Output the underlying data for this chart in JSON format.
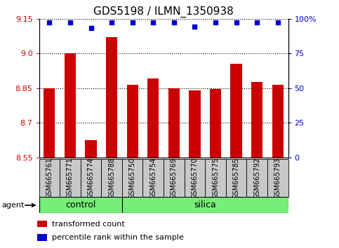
{
  "title": "GDS5198 / ILMN_1350938",
  "samples": [
    "GSM665761",
    "GSM665771",
    "GSM665774",
    "GSM665788",
    "GSM665750",
    "GSM665754",
    "GSM665769",
    "GSM665770",
    "GSM665775",
    "GSM665785",
    "GSM665792",
    "GSM665793"
  ],
  "bar_values": [
    8.85,
    9.0,
    8.625,
    9.07,
    8.865,
    8.89,
    8.85,
    8.84,
    8.845,
    8.955,
    8.875,
    8.865
  ],
  "percentile_values": [
    97,
    97,
    93,
    97,
    97,
    97,
    97,
    94,
    97,
    97,
    97,
    97
  ],
  "ymin": 8.55,
  "ymax": 9.15,
  "yticks": [
    8.55,
    8.7,
    8.85,
    9.0,
    9.15
  ],
  "right_yticks": [
    0,
    25,
    50,
    75,
    100
  ],
  "right_ytick_labels": [
    "0",
    "25",
    "50",
    "75",
    "100%"
  ],
  "bar_color": "#cc0000",
  "dot_color": "#0000cc",
  "bar_width": 0.55,
  "control_count": 4,
  "silica_count": 8,
  "control_label": "control",
  "silica_label": "silica",
  "agent_label": "agent",
  "legend_bar_label": "transformed count",
  "legend_dot_label": "percentile rank within the sample",
  "group_bg_color": "#77ee77",
  "tick_label_bg": "#c8c8c8",
  "plot_bg": "#ffffff",
  "grid_color": "#000000",
  "title_fontsize": 11,
  "tick_fontsize": 8,
  "label_fontsize": 9,
  "sample_fontsize": 7,
  "legend_fontsize": 8
}
